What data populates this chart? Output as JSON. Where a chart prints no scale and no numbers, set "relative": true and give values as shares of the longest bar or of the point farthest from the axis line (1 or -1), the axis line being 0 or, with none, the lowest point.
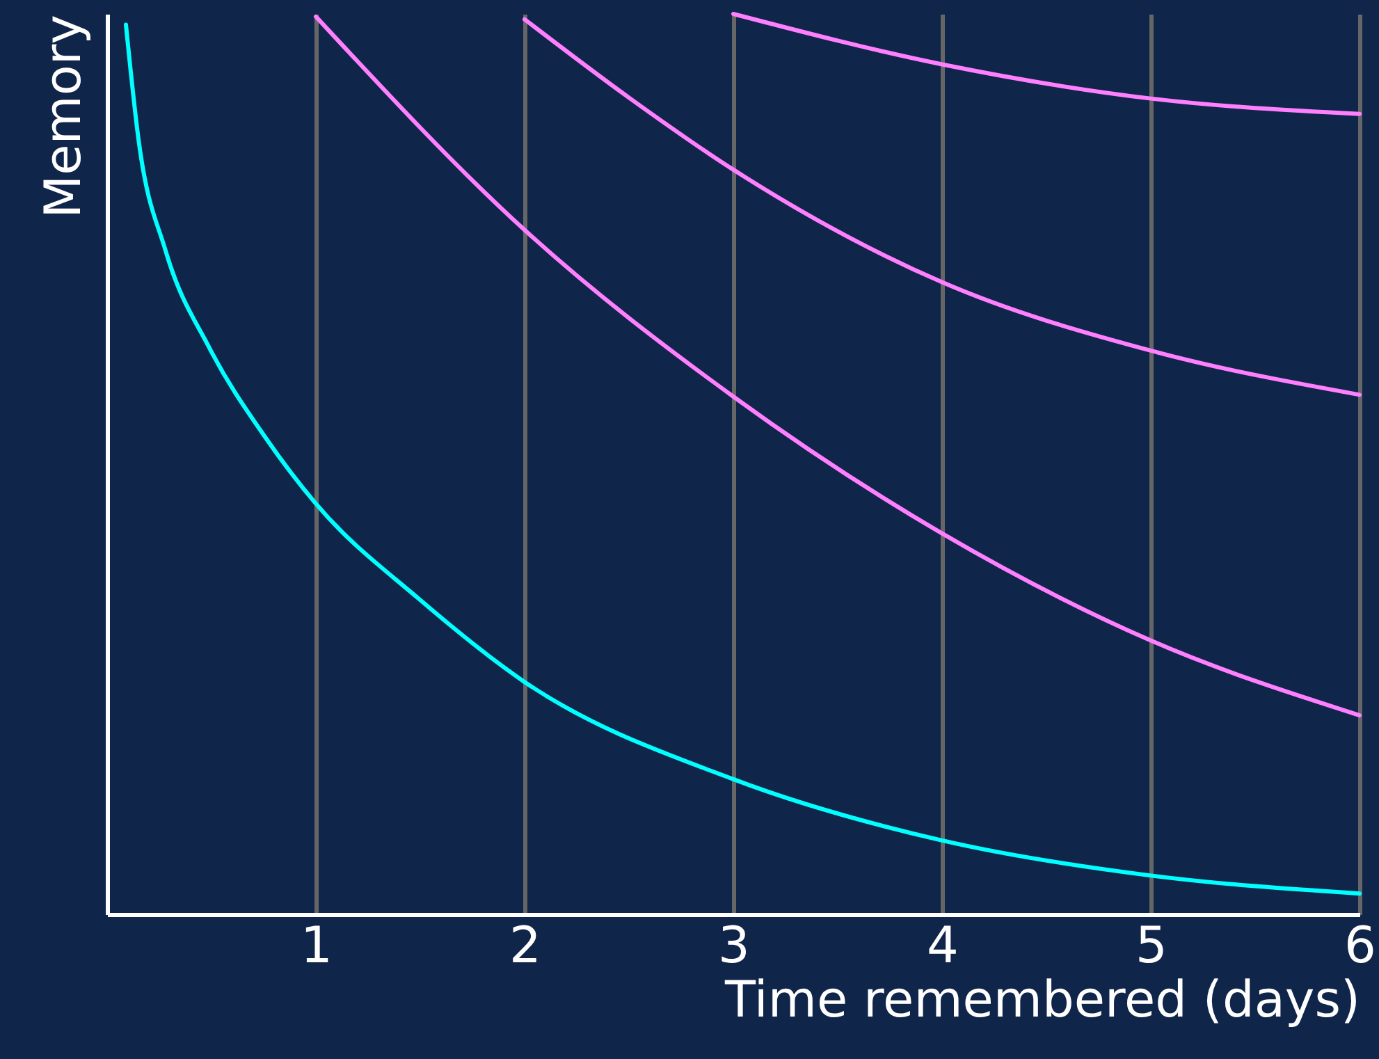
{
  "chart_data": {
    "type": "line",
    "relative": true,
    "xlabel": "Time remembered (days)",
    "ylabel": "Memory",
    "xlim": [
      0,
      6
    ],
    "xticks": [
      1,
      2,
      3,
      4,
      5,
      6
    ],
    "grid": "x",
    "marker": "none",
    "line_style": "solid",
    "series": [
      {
        "color": "#00ffff",
        "x": [
          0.09,
          0.15,
          0.28,
          0.49,
          0.76,
          1,
          1.49,
          2,
          3,
          4,
          5,
          6
        ],
        "values": [
          0.988,
          0.861,
          0.737,
          0.629,
          0.529,
          0.456,
          0.351,
          0.258,
          0.15,
          0.082,
          0.043,
          0.023
        ]
      },
      {
        "color": "#ff80ff",
        "x": [
          1,
          2,
          3,
          4,
          5,
          6
        ],
        "values": [
          0.997,
          0.76,
          0.575,
          0.423,
          0.304,
          0.221
        ]
      },
      {
        "color": "#ff80ff",
        "x": [
          2,
          2.5,
          3,
          4,
          5,
          6
        ],
        "values": [
          0.994,
          0.907,
          0.827,
          0.702,
          0.626,
          0.577
        ]
      },
      {
        "color": "#ff80ff",
        "x": [
          3,
          4,
          5,
          6
        ],
        "values": [
          1.0,
          0.944,
          0.906,
          0.889
        ]
      }
    ]
  }
}
